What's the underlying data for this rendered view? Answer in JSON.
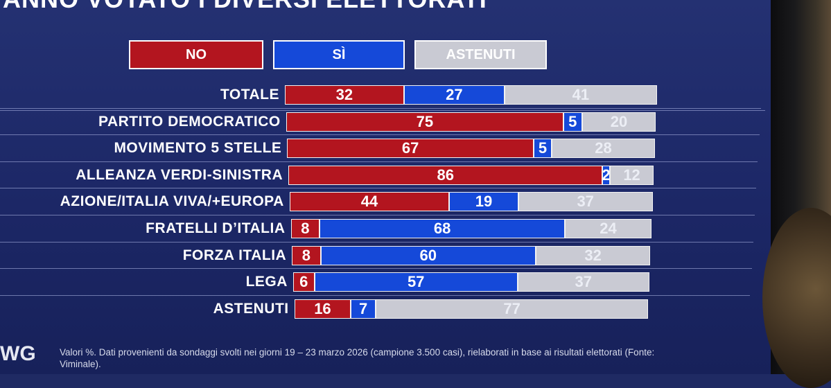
{
  "title": "ANNO VOTATO I DIVERSI ELETTORATI",
  "legend": {
    "no": "NO",
    "si": "SÌ",
    "astenuti": "ASTENUTI"
  },
  "colors": {
    "no": "#b3151f",
    "si": "#1549d9",
    "astenuti": "#c9cad3",
    "background": "#1f2a63"
  },
  "chart_data": {
    "type": "bar",
    "orientation": "horizontal",
    "stacked": true,
    "categories": [
      "TOTALE",
      "PARTITO DEMOCRATICO",
      "MOVIMENTO 5 STELLE",
      "ALLEANZA VERDI-SINISTRA",
      "AZIONE/ITALIA VIVA/+EUROPA",
      "FRATELLI D’ITALIA",
      "FORZA ITALIA",
      "LEGA",
      "ASTENUTI"
    ],
    "series": [
      {
        "name": "NO",
        "values": [
          32,
          75,
          67,
          86,
          44,
          8,
          8,
          6,
          16
        ]
      },
      {
        "name": "SÌ",
        "values": [
          27,
          5,
          5,
          2,
          19,
          68,
          60,
          57,
          7
        ]
      },
      {
        "name": "ASTENUTI",
        "values": [
          41,
          20,
          28,
          12,
          37,
          24,
          32,
          37,
          77
        ]
      }
    ],
    "xlim": [
      0,
      100
    ],
    "legend_position": "top"
  },
  "footer": {
    "logo": "WG",
    "note": "Valori %. Dati provenienti da sondaggi svolti nei giorni 19 – 23 marzo 2026 (campione 3.500 casi), rielaborati in base ai risultati elettorati (Fonte: Viminale)."
  }
}
